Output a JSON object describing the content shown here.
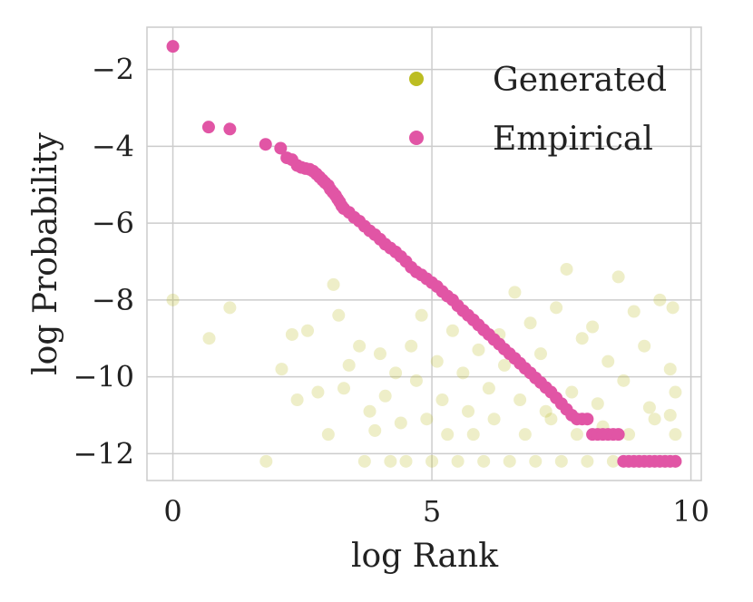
{
  "chart_data": {
    "type": "scatter",
    "title": "",
    "xlabel": "log Rank",
    "ylabel": "log Probability",
    "xlim": [
      -0.5,
      10.2
    ],
    "ylim": [
      -12.7,
      -0.9
    ],
    "xticks": [
      0,
      5,
      10
    ],
    "yticks": [
      -2,
      -4,
      -6,
      -8,
      -10,
      -12
    ],
    "xtick_labels": [
      "0",
      "5",
      "10"
    ],
    "ytick_labels": [
      "−2",
      "−4",
      "−6",
      "−8",
      "−10",
      "−12"
    ],
    "grid": true,
    "legend_position": "top-right",
    "series": [
      {
        "name": "Generated",
        "color": "#bcbd22",
        "opacity": 0.25,
        "description": "faint scattered points, dense cluster at large rank",
        "points": [
          [
            0.0,
            -8.0
          ],
          [
            0.7,
            -9.0
          ],
          [
            1.1,
            -8.2
          ],
          [
            1.8,
            -12.2
          ],
          [
            2.1,
            -9.8
          ],
          [
            2.3,
            -8.9
          ],
          [
            2.4,
            -10.6
          ],
          [
            2.6,
            -8.8
          ],
          [
            2.8,
            -10.4
          ],
          [
            3.0,
            -11.5
          ],
          [
            3.1,
            -7.6
          ],
          [
            3.2,
            -8.4
          ],
          [
            3.3,
            -10.3
          ],
          [
            3.4,
            -9.7
          ],
          [
            3.6,
            -9.2
          ],
          [
            3.7,
            -12.2
          ],
          [
            3.8,
            -10.9
          ],
          [
            3.9,
            -11.4
          ],
          [
            4.0,
            -9.4
          ],
          [
            4.1,
            -10.5
          ],
          [
            4.2,
            -12.2
          ],
          [
            4.3,
            -9.9
          ],
          [
            4.4,
            -11.2
          ],
          [
            4.5,
            -12.2
          ],
          [
            4.6,
            -9.2
          ],
          [
            4.7,
            -10.1
          ],
          [
            4.8,
            -8.4
          ],
          [
            4.9,
            -11.1
          ],
          [
            5.0,
            -12.2
          ],
          [
            5.1,
            -9.6
          ],
          [
            5.2,
            -10.6
          ],
          [
            5.3,
            -11.5
          ],
          [
            5.4,
            -8.8
          ],
          [
            5.5,
            -12.2
          ],
          [
            5.6,
            -9.9
          ],
          [
            5.7,
            -10.9
          ],
          [
            5.8,
            -11.5
          ],
          [
            5.9,
            -9.3
          ],
          [
            6.0,
            -12.2
          ],
          [
            6.1,
            -10.3
          ],
          [
            6.2,
            -11.1
          ],
          [
            6.3,
            -8.9
          ],
          [
            6.4,
            -9.7
          ],
          [
            6.5,
            -12.2
          ],
          [
            6.6,
            -7.8
          ],
          [
            6.7,
            -10.6
          ],
          [
            6.8,
            -11.5
          ],
          [
            6.9,
            -8.6
          ],
          [
            7.0,
            -12.2
          ],
          [
            7.1,
            -9.4
          ],
          [
            7.2,
            -10.9
          ],
          [
            7.3,
            -11.1
          ],
          [
            7.4,
            -8.2
          ],
          [
            7.5,
            -12.2
          ],
          [
            7.6,
            -7.2
          ],
          [
            7.7,
            -10.4
          ],
          [
            7.8,
            -11.5
          ],
          [
            7.9,
            -9.0
          ],
          [
            8.0,
            -12.2
          ],
          [
            8.1,
            -8.7
          ],
          [
            8.2,
            -10.7
          ],
          [
            8.3,
            -11.3
          ],
          [
            8.4,
            -9.6
          ],
          [
            8.5,
            -12.2
          ],
          [
            8.6,
            -7.4
          ],
          [
            8.7,
            -10.1
          ],
          [
            8.8,
            -11.5
          ],
          [
            8.9,
            -8.3
          ],
          [
            9.0,
            -12.2
          ],
          [
            9.1,
            -9.2
          ],
          [
            9.2,
            -10.8
          ],
          [
            9.3,
            -11.1
          ],
          [
            9.4,
            -8.0
          ],
          [
            9.5,
            -12.2
          ],
          [
            9.6,
            -9.8
          ],
          [
            9.65,
            -8.2
          ],
          [
            9.7,
            -11.5
          ],
          [
            9.7,
            -10.4
          ],
          [
            9.7,
            -12.2
          ],
          [
            9.6,
            -11.0
          ]
        ]
      },
      {
        "name": "Empirical",
        "color": "#e155a5",
        "opacity": 1.0,
        "description": "decreasing curve from (0,-1.4) to plateau at -12.2",
        "points": [
          [
            0.0,
            -1.4
          ],
          [
            0.69,
            -3.5
          ],
          [
            1.1,
            -3.55
          ],
          [
            1.79,
            -3.95
          ],
          [
            2.08,
            -4.05
          ],
          [
            2.2,
            -4.3
          ],
          [
            2.3,
            -4.35
          ],
          [
            2.4,
            -4.5
          ],
          [
            2.48,
            -4.55
          ],
          [
            2.56,
            -4.58
          ],
          [
            2.64,
            -4.6
          ],
          [
            2.71,
            -4.65
          ],
          [
            2.77,
            -4.72
          ],
          [
            2.83,
            -4.8
          ],
          [
            2.89,
            -4.88
          ],
          [
            2.94,
            -4.95
          ],
          [
            3.0,
            -5.02
          ],
          [
            3.04,
            -5.12
          ],
          [
            3.09,
            -5.2
          ],
          [
            3.14,
            -5.28
          ],
          [
            3.18,
            -5.37
          ],
          [
            3.22,
            -5.45
          ],
          [
            3.26,
            -5.55
          ],
          [
            3.3,
            -5.62
          ],
          [
            3.4,
            -5.72
          ],
          [
            3.5,
            -5.85
          ],
          [
            3.6,
            -5.95
          ],
          [
            3.7,
            -6.08
          ],
          [
            3.8,
            -6.2
          ],
          [
            3.9,
            -6.3
          ],
          [
            4.0,
            -6.42
          ],
          [
            4.1,
            -6.55
          ],
          [
            4.2,
            -6.65
          ],
          [
            4.3,
            -6.75
          ],
          [
            4.4,
            -6.87
          ],
          [
            4.5,
            -7.0
          ],
          [
            4.6,
            -7.15
          ],
          [
            4.7,
            -7.27
          ],
          [
            4.8,
            -7.35
          ],
          [
            4.9,
            -7.45
          ],
          [
            5.0,
            -7.55
          ],
          [
            5.1,
            -7.65
          ],
          [
            5.2,
            -7.78
          ],
          [
            5.3,
            -7.9
          ],
          [
            5.4,
            -8.0
          ],
          [
            5.5,
            -8.15
          ],
          [
            5.6,
            -8.28
          ],
          [
            5.7,
            -8.4
          ],
          [
            5.8,
            -8.52
          ],
          [
            5.9,
            -8.65
          ],
          [
            6.0,
            -8.78
          ],
          [
            6.1,
            -8.9
          ],
          [
            6.2,
            -9.03
          ],
          [
            6.3,
            -9.15
          ],
          [
            6.4,
            -9.28
          ],
          [
            6.5,
            -9.4
          ],
          [
            6.6,
            -9.52
          ],
          [
            6.7,
            -9.65
          ],
          [
            6.8,
            -9.78
          ],
          [
            6.9,
            -9.9
          ],
          [
            7.0,
            -10.03
          ],
          [
            7.1,
            -10.15
          ],
          [
            7.2,
            -10.28
          ],
          [
            7.3,
            -10.4
          ],
          [
            7.4,
            -10.55
          ],
          [
            7.5,
            -10.7
          ],
          [
            7.6,
            -10.85
          ],
          [
            7.7,
            -11.0
          ],
          [
            7.8,
            -11.1
          ],
          [
            7.9,
            -11.1
          ],
          [
            8.0,
            -11.1
          ],
          [
            8.1,
            -11.5
          ],
          [
            8.2,
            -11.5
          ],
          [
            8.3,
            -11.5
          ],
          [
            8.4,
            -11.5
          ],
          [
            8.5,
            -11.5
          ],
          [
            8.6,
            -11.5
          ],
          [
            8.7,
            -12.2
          ],
          [
            8.8,
            -12.2
          ],
          [
            8.9,
            -12.2
          ],
          [
            9.0,
            -12.2
          ],
          [
            9.1,
            -12.2
          ],
          [
            9.2,
            -12.2
          ],
          [
            9.3,
            -12.2
          ],
          [
            9.4,
            -12.2
          ],
          [
            9.5,
            -12.2
          ],
          [
            9.6,
            -12.2
          ],
          [
            9.7,
            -12.2
          ]
        ]
      }
    ]
  }
}
